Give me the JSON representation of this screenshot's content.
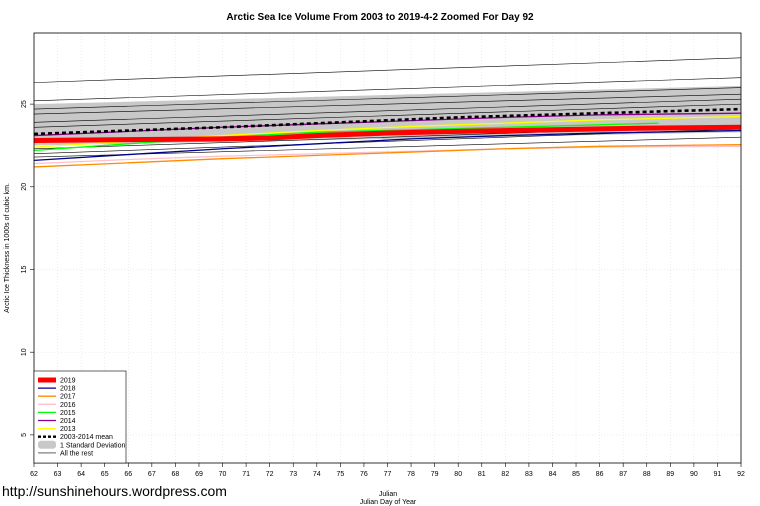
{
  "chart_data": {
    "type": "line",
    "title": "Arctic Sea Ice Volume From 2003 to 2019-4-2 Zoomed For Day 92",
    "xlabel": "Julian",
    "xlabel2": "Julian Day of Year",
    "ylabel": "Arctic Ice Thickness in 1000s of cubic km.",
    "xlim": [
      62,
      92
    ],
    "ylim": [
      3.3,
      29.3
    ],
    "x_ticks": [
      62,
      63,
      64,
      65,
      66,
      67,
      68,
      69,
      70,
      71,
      72,
      73,
      74,
      75,
      76,
      77,
      78,
      79,
      80,
      81,
      82,
      83,
      84,
      85,
      86,
      87,
      88,
      89,
      90,
      91,
      92
    ],
    "y_ticks": [
      5,
      10,
      15,
      20,
      25
    ],
    "grid": true,
    "legend_placement": "bottom-left",
    "std_band": {
      "name": "1 Standard Deviation",
      "x": [
        62,
        92
      ],
      "lower": [
        22.5,
        23.3
      ],
      "upper": [
        25.0,
        26.1
      ],
      "color": "#c8c8c8"
    },
    "mean": {
      "name": "2003-2014 mean",
      "x": [
        62,
        70,
        80,
        92
      ],
      "values": [
        23.2,
        23.6,
        24.2,
        24.7
      ],
      "color": "#000000"
    },
    "series": [
      {
        "name": "2019",
        "color": "#ff0000",
        "x": [
          62,
          66,
          70,
          72,
          74,
          77,
          80,
          84,
          88,
          92
        ],
        "values": [
          22.8,
          22.85,
          22.9,
          22.95,
          23.1,
          23.25,
          23.35,
          23.45,
          23.55,
          23.6
        ]
      },
      {
        "name": "2018",
        "color": "#00008b",
        "x": [
          62,
          66,
          70,
          74,
          78,
          82,
          86,
          92
        ],
        "values": [
          21.6,
          21.95,
          22.3,
          22.6,
          22.9,
          23.1,
          23.25,
          23.4
        ]
      },
      {
        "name": "2017",
        "color": "#ff8c00",
        "x": [
          62,
          66,
          70,
          74,
          78,
          82,
          86,
          92
        ],
        "values": [
          21.2,
          21.45,
          21.7,
          21.9,
          22.1,
          22.3,
          22.45,
          22.55
        ]
      },
      {
        "name": "2016",
        "color": "#ffc0cb",
        "x": [
          62,
          66,
          70,
          74,
          78,
          82,
          86,
          92
        ],
        "values": [
          21.4,
          21.65,
          21.85,
          22.0,
          22.15,
          22.3,
          22.4,
          22.45
        ]
      },
      {
        "name": "2015",
        "color": "#00ff00",
        "x": [
          62,
          66,
          70,
          74,
          78,
          82,
          86,
          88.5
        ],
        "values": [
          22.2,
          22.6,
          23.0,
          23.3,
          23.45,
          23.6,
          23.75,
          23.85
        ]
      },
      {
        "name": "2014",
        "color": "#8b008b",
        "x": [
          62,
          66,
          70,
          74,
          78,
          82,
          86,
          92
        ],
        "values": [
          23.1,
          23.35,
          23.6,
          23.8,
          24.0,
          24.2,
          24.35,
          24.45
        ]
      },
      {
        "name": "2013",
        "color": "#ffff00",
        "x": [
          62,
          66,
          70,
          74,
          78,
          82,
          86,
          92
        ],
        "values": [
          22.4,
          22.75,
          23.1,
          23.4,
          23.65,
          23.85,
          24.05,
          24.25
        ]
      }
    ],
    "other_series": [
      {
        "x": [
          62,
          92
        ],
        "values": [
          26.3,
          27.8
        ]
      },
      {
        "x": [
          62,
          92
        ],
        "values": [
          25.2,
          26.6
        ]
      },
      {
        "x": [
          62,
          92
        ],
        "values": [
          24.7,
          26.0
        ]
      },
      {
        "x": [
          62,
          92
        ],
        "values": [
          24.4,
          25.6
        ]
      },
      {
        "x": [
          62,
          92
        ],
        "values": [
          23.9,
          25.3
        ]
      },
      {
        "x": [
          62,
          92
        ],
        "values": [
          23.6,
          25.0
        ]
      },
      {
        "x": [
          62,
          92
        ],
        "values": [
          22.3,
          23.7
        ]
      },
      {
        "x": [
          62,
          92
        ],
        "values": [
          22.0,
          23.5
        ]
      },
      {
        "x": [
          62,
          92
        ],
        "values": [
          21.8,
          23.0
        ]
      }
    ],
    "rest_name": "All the rest"
  },
  "watermark": "http://sunshinehours.wordpress.com"
}
